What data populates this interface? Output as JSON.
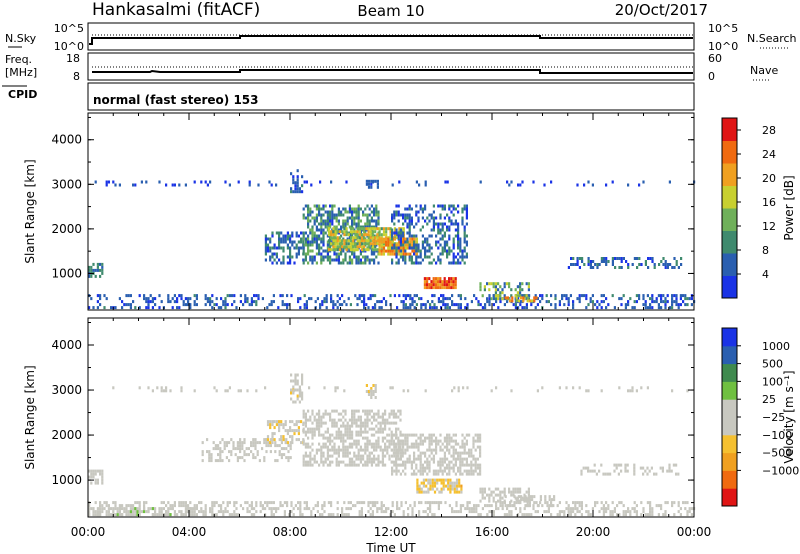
{
  "header": {
    "station": "Hankasalmi (fitACF)",
    "beam": "Beam 10",
    "date": "20/Oct/2017"
  },
  "top_panels": {
    "nsky_label": "N.Sky",
    "nsearch_label": "N.Search",
    "nsky_ticks": [
      "10^5",
      "10^0"
    ],
    "nsearch_ticks": [
      "10^5",
      "10^0"
    ],
    "freq_label_1": "Freq.",
    "freq_label_2": "[MHz]",
    "freq_ticks": [
      "18",
      "8"
    ],
    "nave_label": "Nave",
    "nave_ticks": [
      "60",
      "0"
    ],
    "cpid_label": "CPID",
    "cpid_text": "normal (fast stereo) 153"
  },
  "x_axis": {
    "label": "Time UT",
    "ticks": [
      "00:00",
      "04:00",
      "08:00",
      "12:00",
      "16:00",
      "20:00",
      "00:00"
    ]
  },
  "colors": {
    "power": [
      "#1a33e6",
      "#2a5fb0",
      "#3f8a6e",
      "#6fb05a",
      "#c8d030",
      "#f0a020",
      "#f06a10",
      "#e01515"
    ],
    "velocity": [
      "#e01515",
      "#f06a10",
      "#f0a020",
      "#f5c030",
      "#c8c8c0",
      "#c8c8c0",
      "#6fc040",
      "#3f8a4e",
      "#2a5fb0",
      "#1a33e6"
    ],
    "no_data": "#ffffff"
  },
  "chart_data": [
    {
      "type": "heatmap",
      "title": "",
      "ylabel": "Slant Range [km]",
      "xlabel": "",
      "x_range_hours": [
        0,
        24
      ],
      "ylim": [
        180,
        4600
      ],
      "yticks": [
        "1000",
        "2000",
        "3000",
        "4000"
      ],
      "colorbar": {
        "label": "Power [dB]",
        "ticks": [
          "4",
          "8",
          "12",
          "16",
          "20",
          "24",
          "28"
        ],
        "range": [
          0,
          30
        ]
      },
      "regions": [
        {
          "t": [
            0.0,
            24.0
          ],
          "r": [
            200,
            500
          ],
          "density": 0.35,
          "v": [
            2,
            8
          ]
        },
        {
          "t": [
            0.0,
            0.6
          ],
          "r": [
            900,
            1200
          ],
          "density": 0.7,
          "v": [
            4,
            10
          ]
        },
        {
          "t": [
            7.0,
            8.5
          ],
          "r": [
            1200,
            1900
          ],
          "density": 0.55,
          "v": [
            2,
            10
          ]
        },
        {
          "t": [
            8.5,
            11.5
          ],
          "r": [
            1200,
            2500
          ],
          "density": 0.6,
          "v": [
            3,
            14
          ]
        },
        {
          "t": [
            9.5,
            12.5
          ],
          "r": [
            1500,
            2000
          ],
          "density": 0.8,
          "v": [
            10,
            22
          ]
        },
        {
          "t": [
            11.5,
            13.0
          ],
          "r": [
            1400,
            1800
          ],
          "density": 0.85,
          "v": [
            16,
            26
          ]
        },
        {
          "t": [
            12.0,
            15.0
          ],
          "r": [
            1200,
            2500
          ],
          "density": 0.45,
          "v": [
            2,
            10
          ]
        },
        {
          "t": [
            13.3,
            14.6
          ],
          "r": [
            650,
            900
          ],
          "density": 0.9,
          "v": [
            20,
            29
          ]
        },
        {
          "t": [
            15.5,
            17.5
          ],
          "r": [
            400,
            750
          ],
          "density": 0.5,
          "v": [
            4,
            18
          ]
        },
        {
          "t": [
            16.5,
            17.8
          ],
          "r": [
            350,
            450
          ],
          "density": 0.6,
          "v": [
            14,
            27
          ]
        },
        {
          "t": [
            19.0,
            23.5
          ],
          "r": [
            1100,
            1350
          ],
          "density": 0.4,
          "v": [
            2,
            10
          ]
        },
        {
          "t": [
            8.0,
            8.5
          ],
          "r": [
            2800,
            3300
          ],
          "density": 0.5,
          "v": [
            2,
            8
          ]
        },
        {
          "t": [
            11.0,
            11.5
          ],
          "r": [
            2900,
            3100
          ],
          "density": 0.6,
          "v": [
            3,
            8
          ]
        },
        {
          "t": [
            0.0,
            24.0
          ],
          "r": [
            2950,
            3050
          ],
          "density": 0.12,
          "v": [
            2,
            6
          ]
        }
      ]
    },
    {
      "type": "heatmap",
      "title": "",
      "ylabel": "Slant Range [km]",
      "xlabel": "Time UT",
      "x_range_hours": [
        0,
        24
      ],
      "ylim": [
        180,
        4600
      ],
      "yticks": [
        "1000",
        "2000",
        "3000",
        "4000"
      ],
      "colorbar": {
        "label": "Velocity [m s^-1]",
        "ticks": [
          "1000",
          "500",
          "100",
          "25",
          "-25",
          "-100",
          "-500",
          "-1000"
        ],
        "range": [
          -1200,
          1200
        ]
      },
      "regions": [
        {
          "t": [
            0.0,
            24.0
          ],
          "r": [
            200,
            500
          ],
          "density": 0.4,
          "v": [
            -50,
            150
          ]
        },
        {
          "t": [
            0.0,
            5.0
          ],
          "r": [
            200,
            380
          ],
          "density": 0.5,
          "v": [
            100,
            250
          ]
        },
        {
          "t": [
            0.0,
            0.6
          ],
          "r": [
            900,
            1200
          ],
          "density": 0.6,
          "v": [
            -150,
            30
          ]
        },
        {
          "t": [
            4.5,
            8.0
          ],
          "r": [
            1400,
            1900
          ],
          "density": 0.45,
          "v": [
            -20,
            20
          ]
        },
        {
          "t": [
            7.0,
            8.5
          ],
          "r": [
            1800,
            2300
          ],
          "density": 0.5,
          "v": [
            -300,
            0
          ]
        },
        {
          "t": [
            8.5,
            12.5
          ],
          "r": [
            1300,
            2500
          ],
          "density": 0.6,
          "v": [
            -20,
            20
          ]
        },
        {
          "t": [
            12.0,
            15.5
          ],
          "r": [
            1100,
            2000
          ],
          "density": 0.55,
          "v": [
            -20,
            20
          ]
        },
        {
          "t": [
            13.0,
            14.8
          ],
          "r": [
            700,
            1000
          ],
          "density": 0.8,
          "v": [
            -500,
            -80
          ]
        },
        {
          "t": [
            15.5,
            17.5
          ],
          "r": [
            500,
            800
          ],
          "density": 0.55,
          "v": [
            50,
            200
          ]
        },
        {
          "t": [
            16.5,
            18.5
          ],
          "r": [
            400,
            600
          ],
          "density": 0.5,
          "v": [
            -20,
            20
          ]
        },
        {
          "t": [
            19.5,
            23.5
          ],
          "r": [
            1100,
            1350
          ],
          "density": 0.4,
          "v": [
            -80,
            20
          ]
        },
        {
          "t": [
            8.0,
            8.5
          ],
          "r": [
            2700,
            3300
          ],
          "density": 0.5,
          "v": [
            -300,
            -50
          ]
        },
        {
          "t": [
            11.0,
            11.5
          ],
          "r": [
            2800,
            3100
          ],
          "density": 0.5,
          "v": [
            -300,
            -50
          ]
        },
        {
          "t": [
            0.0,
            24.0
          ],
          "r": [
            2950,
            3050
          ],
          "density": 0.1,
          "v": [
            -100,
            100
          ]
        }
      ]
    }
  ]
}
